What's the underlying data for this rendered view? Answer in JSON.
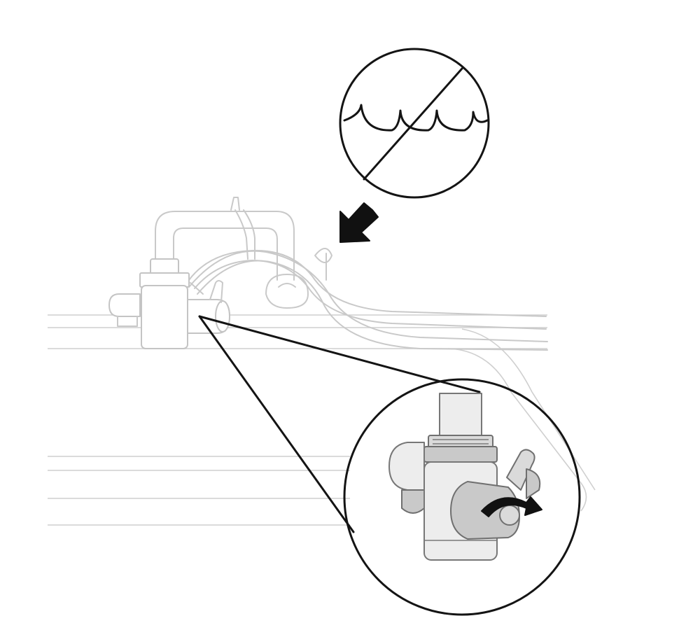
{
  "figure": {
    "elements": [
      "no-water-sign",
      "pointer-arrow",
      "faucet-with-diverter-valve",
      "sink-counter",
      "zoom-callout-valve-detail",
      "rotate-arrow"
    ],
    "colors": {
      "ink": "#141414",
      "faint_line": "#c9c9c9",
      "valve_light": "#ededed",
      "valve_shade": "#c9c9c9"
    }
  }
}
